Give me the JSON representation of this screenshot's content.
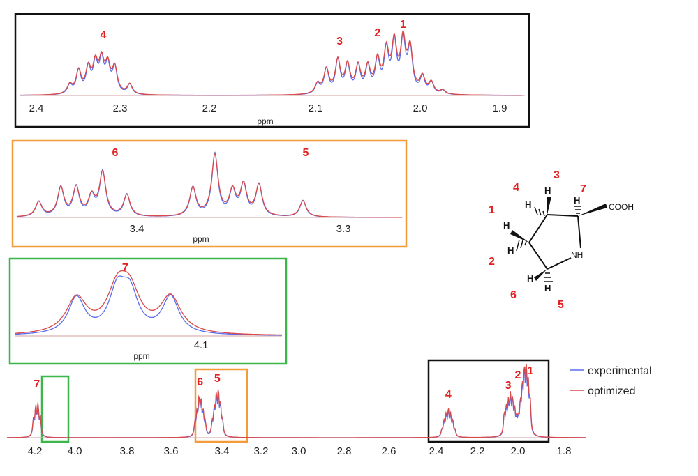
{
  "colors": {
    "experimental": "#5a6cf0",
    "optimized": "#d94a4a",
    "peak_label": "#e02020",
    "frame_black": "#111111",
    "frame_orange": "#f39a3b",
    "frame_green": "#3cb54a"
  },
  "legend": {
    "experimental": "experimental",
    "optimized": "optimized"
  },
  "molecule": {
    "atoms": {
      "h": "H",
      "nh": "NH",
      "cooh": "COOH"
    },
    "numbers": [
      "1",
      "2",
      "3",
      "4",
      "5",
      "6",
      "7"
    ]
  },
  "chart_data": [
    {
      "type": "line",
      "panel": "full spectrum",
      "xlabel": "",
      "x_reversed": true,
      "xlim": [
        4.25,
        1.73
      ],
      "xticks": [
        "4.2",
        "4.0",
        "3.8",
        "3.6",
        "3.4",
        "3.2",
        "3.0",
        "2.8",
        "2.6",
        "2.4",
        "2.2",
        "2.0",
        "1.8"
      ],
      "series": [
        {
          "name": "experimental"
        },
        {
          "name": "optimized"
        }
      ],
      "peaks": [
        {
          "label": "7",
          "x": 4.12
        },
        {
          "label": "6",
          "x": 3.41
        },
        {
          "label": "5",
          "x": 3.335
        },
        {
          "label": "4",
          "x": 2.33
        },
        {
          "label": "3",
          "x": 2.07
        },
        {
          "label": "2",
          "x": 2.02
        },
        {
          "label": "1",
          "x": 1.99
        }
      ]
    },
    {
      "type": "line",
      "panel": "zoom 2.4-1.9",
      "xlabel": "ppm",
      "x_reversed": true,
      "xlim": [
        2.43,
        1.86
      ],
      "xticks": [
        "2.4",
        "2.3",
        "2.2",
        "2.1",
        "2.0",
        "1.9"
      ],
      "series": [
        {
          "name": "experimental"
        },
        {
          "name": "optimized"
        }
      ],
      "peaks": [
        {
          "label": "4",
          "x": 2.335
        },
        {
          "label": "3",
          "x": 2.067
        },
        {
          "label": "2",
          "x": 2.024
        },
        {
          "label": "1",
          "x": 1.995
        }
      ]
    },
    {
      "type": "line",
      "panel": "zoom 3.45-3.28",
      "xlabel": "ppm",
      "x_reversed": true,
      "xlim": [
        3.45,
        3.275
      ],
      "xticks": [
        "3.4",
        "3.3"
      ],
      "series": [
        {
          "name": "experimental"
        },
        {
          "name": "optimized"
        }
      ],
      "peaks": [
        {
          "label": "6",
          "x": 3.413
        },
        {
          "label": "5",
          "x": 3.337
        }
      ]
    },
    {
      "type": "line",
      "panel": "zoom 4.1",
      "xlabel": "ppm",
      "x_reversed": true,
      "xlim": [
        4.155,
        4.07
      ],
      "xticks": [
        "4.1"
      ],
      "series": [
        {
          "name": "experimental"
        },
        {
          "name": "optimized"
        }
      ],
      "peaks": [
        {
          "label": "7",
          "x": 4.12
        }
      ]
    }
  ]
}
